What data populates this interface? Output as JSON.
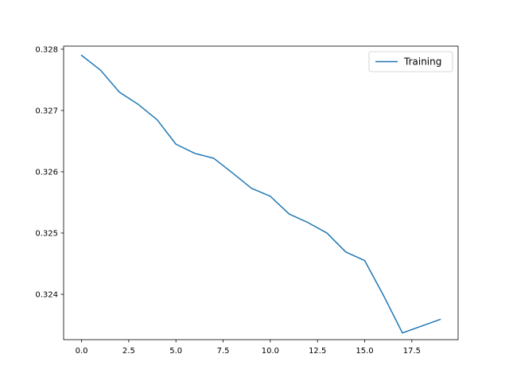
{
  "chart_data": {
    "type": "line",
    "title": "",
    "xlabel": "",
    "ylabel": "",
    "xlim": [
      -0.95,
      19.95
    ],
    "ylim": [
      0.32326,
      0.32805
    ],
    "grid": false,
    "legend_position": "top-right",
    "x_ticks": [
      0,
      2.5,
      5,
      7.5,
      10,
      12.5,
      15,
      17.5
    ],
    "x_tick_labels": [
      "0.0",
      "2.5",
      "5.0",
      "7.5",
      "10.0",
      "12.5",
      "15.0",
      "17.5"
    ],
    "y_ticks": [
      0.324,
      0.325,
      0.326,
      0.327,
      0.328
    ],
    "y_tick_labels": [
      "0.324",
      "0.325",
      "0.326",
      "0.327",
      "0.328"
    ],
    "series": [
      {
        "name": "Training",
        "color": "#1f77b4",
        "x": [
          0,
          1,
          2,
          3,
          4,
          5,
          6,
          7,
          8,
          9,
          10,
          11,
          12,
          13,
          14,
          15,
          16,
          17,
          18,
          19
        ],
        "y": [
          0.3279,
          0.32766,
          0.3273,
          0.3271,
          0.32685,
          0.32645,
          0.3263,
          0.32622,
          0.32598,
          0.32573,
          0.3256,
          0.32531,
          0.32517,
          0.325,
          0.32469,
          0.32455,
          0.32398,
          0.32337,
          0.32348,
          0.32359
        ]
      }
    ]
  }
}
